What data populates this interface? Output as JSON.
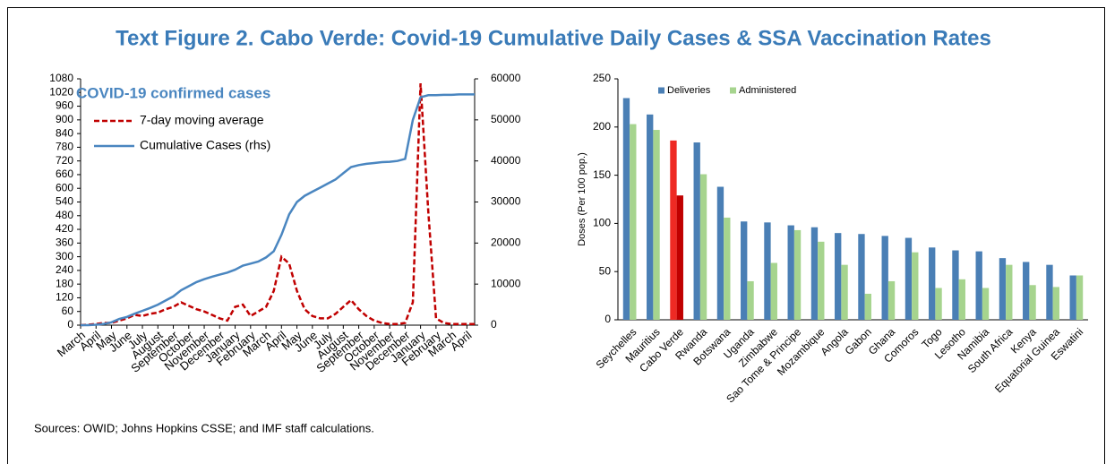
{
  "title": "Text Figure 2. Cabo Verde: Covid-19 Cumulative Daily Cases & SSA Vaccination Rates",
  "note": "Sources: OWID;  Johns Hopkins CSSE; and IMF staff calculations.",
  "chart_data": [
    {
      "type": "line",
      "annotation": "COVID-19 confirmed cases",
      "categories": [
        "March",
        null,
        "April",
        null,
        "May",
        null,
        "June",
        null,
        "July",
        null,
        "August",
        null,
        "September",
        null,
        "October",
        null,
        "November",
        null,
        "December",
        null,
        "January",
        null,
        "February",
        null,
        "March",
        null,
        "April",
        null,
        "May",
        null,
        "June",
        null,
        "July",
        null,
        "August",
        null,
        "September",
        null,
        "October",
        null,
        "November",
        null,
        "December",
        null,
        "January",
        null,
        "February",
        null,
        "March",
        null,
        "April",
        null
      ],
      "series": [
        {
          "name": "7-day moving average",
          "color": "#c00000",
          "dashed": true,
          "values": [
            0,
            2,
            5,
            10,
            10,
            20,
            30,
            45,
            40,
            50,
            55,
            70,
            80,
            100,
            85,
            70,
            60,
            45,
            30,
            20,
            80,
            90,
            40,
            60,
            80,
            150,
            300,
            270,
            150,
            70,
            40,
            30,
            30,
            50,
            80,
            110,
            70,
            40,
            20,
            10,
            5,
            5,
            10,
            100,
            1060,
            500,
            30,
            10,
            5,
            5,
            5,
            5
          ]
        },
        {
          "name": "Cumulative Cases (rhs)",
          "color": "#4a86c0",
          "axis": "y2",
          "values": [
            0,
            0,
            100,
            300,
            700,
            1500,
            2000,
            2800,
            3500,
            4200,
            5000,
            6000,
            7000,
            8500,
            9500,
            10500,
            11200,
            11800,
            12300,
            12800,
            13500,
            14500,
            15000,
            15500,
            16500,
            18000,
            22000,
            27000,
            30000,
            31500,
            32500,
            33500,
            34500,
            35500,
            37000,
            38500,
            39000,
            39300,
            39500,
            39700,
            39800,
            40000,
            40500,
            50000,
            55500,
            56000,
            56000,
            56100,
            56100,
            56200,
            56200,
            56200
          ]
        }
      ],
      "ylim": [
        0,
        1080
      ],
      "yticks": [
        0,
        60,
        120,
        180,
        240,
        300,
        360,
        420,
        480,
        540,
        600,
        660,
        720,
        780,
        840,
        900,
        960,
        1020,
        1080
      ],
      "y2lim": [
        0,
        60000
      ],
      "y2ticks": [
        0,
        10000,
        20000,
        30000,
        40000,
        50000,
        60000
      ],
      "grid": false,
      "legend": "top-left"
    },
    {
      "type": "bar",
      "categories": [
        "Seychelles",
        "Mauritius",
        "Cabo Verde",
        "Rwanda",
        "Botswana",
        "Uganda",
        "Zimbabwe",
        "Sao Tome & Principe",
        "Mozambique",
        "Angola",
        "Gabon",
        "Ghana",
        "Comoros",
        "Togo",
        "Lesotho",
        "Namibia",
        "South Africa",
        "Kenya",
        "Equatorial Guinea",
        "Eswatini"
      ],
      "series": [
        {
          "name": "Deliveries",
          "color": "#4a7fb5",
          "highlight_color": "#ee2a24",
          "values": [
            230,
            213,
            186,
            184,
            138,
            102,
            101,
            98,
            96,
            90,
            89,
            87,
            85,
            75,
            72,
            71,
            64,
            60,
            57,
            46
          ]
        },
        {
          "name": "Administered",
          "color": "#a6d48e",
          "highlight_color": "#c00000",
          "values": [
            203,
            197,
            129,
            151,
            106,
            40,
            59,
            93,
            81,
            57,
            27,
            40,
            70,
            33,
            42,
            33,
            57,
            36,
            34,
            46
          ]
        }
      ],
      "highlight_index": 2,
      "ylabel": "Doses (Per 100 pop.)",
      "ylim": [
        0,
        250
      ],
      "yticks": [
        0,
        50,
        100,
        150,
        200,
        250
      ],
      "grid": false,
      "legend": "top-left"
    }
  ]
}
